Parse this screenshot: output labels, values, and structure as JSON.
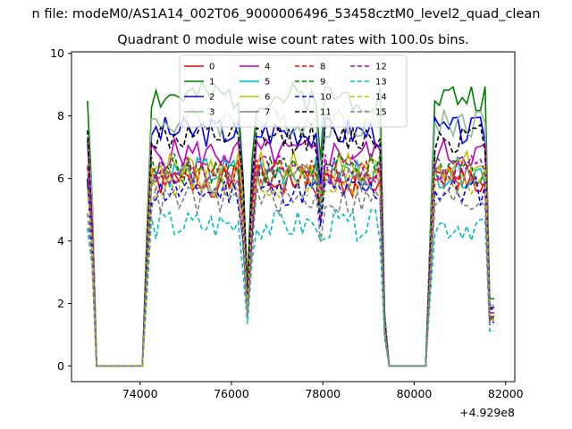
{
  "figure": {
    "suptitle": "n file: modeM0/AS1A14_002T06_9000006496_53458cztM0_level2_quad_clean",
    "title": "Quadrant 0 module wise count rates with 100.0s bins."
  },
  "chart_data": {
    "type": "line",
    "title": "Quadrant 0 module wise count rates with 100.0s bins.",
    "xlabel": "",
    "ylabel": "",
    "x_offset_label": "+4.929e8",
    "xlim": [
      72500,
      82200
    ],
    "ylim": [
      -0.5,
      10.05
    ],
    "xticks": [
      74000,
      76000,
      78000,
      80000,
      82000
    ],
    "xtick_labels": [
      "74000",
      "76000",
      "78000",
      "80000",
      "82000"
    ],
    "yticks": [
      0,
      2,
      4,
      6,
      8,
      10
    ],
    "ytick_labels": [
      "0",
      "2",
      "4",
      "6",
      "8",
      "10"
    ],
    "legend_location": "upper center",
    "legend_columns": 4,
    "x_segments": [
      {
        "start": 72850,
        "end": 73050,
        "step": 100
      },
      {
        "start": 73050,
        "end": 74050,
        "step": 100,
        "value": 0
      },
      {
        "start": 74050,
        "end": 79450,
        "step": 100
      },
      {
        "start": 79450,
        "end": 80250,
        "step": 100,
        "value": 0
      },
      {
        "start": 80250,
        "end": 81750,
        "step": 100
      }
    ],
    "series": [
      {
        "name": "0",
        "color": "#ff0000",
        "dash": "solid",
        "level": 5.9,
        "seed": 1
      },
      {
        "name": "1",
        "color": "#008000",
        "dash": "solid",
        "level": 8.6,
        "seed": 2
      },
      {
        "name": "2",
        "color": "#0000ff",
        "dash": "solid",
        "level": 7.5,
        "seed": 3
      },
      {
        "name": "3",
        "color": "#8fbc8f",
        "dash": "solid",
        "level": 7.8,
        "seed": 4
      },
      {
        "name": "4",
        "color": "#bf00bf",
        "dash": "solid",
        "level": 6.8,
        "seed": 5
      },
      {
        "name": "5",
        "color": "#00bfbf",
        "dash": "solid",
        "level": 6.2,
        "seed": 6
      },
      {
        "name": "6",
        "color": "#bfbf00",
        "dash": "solid",
        "level": 6.4,
        "seed": 7
      },
      {
        "name": "7",
        "color": "#808080",
        "dash": "solid",
        "level": 6.0,
        "seed": 8
      },
      {
        "name": "8",
        "color": "#ff0000",
        "dash": "dashed",
        "level": 6.1,
        "seed": 9
      },
      {
        "name": "9",
        "color": "#008000",
        "dash": "dashed",
        "level": 6.3,
        "seed": 10
      },
      {
        "name": "10",
        "color": "#0000ff",
        "dash": "dashed",
        "level": 5.6,
        "seed": 11
      },
      {
        "name": "11",
        "color": "#000000",
        "dash": "dashed",
        "level": 7.3,
        "seed": 12
      },
      {
        "name": "12",
        "color": "#bf00bf",
        "dash": "dashed",
        "level": 6.3,
        "seed": 13
      },
      {
        "name": "13",
        "color": "#00bfbf",
        "dash": "dashed",
        "level": 4.5,
        "seed": 14
      },
      {
        "name": "14",
        "color": "#bfbf00",
        "dash": "dashed",
        "level": 5.9,
        "seed": 15
      },
      {
        "name": "15",
        "color": "#808080",
        "dash": "dashed",
        "level": 5.3,
        "seed": 16
      }
    ]
  }
}
